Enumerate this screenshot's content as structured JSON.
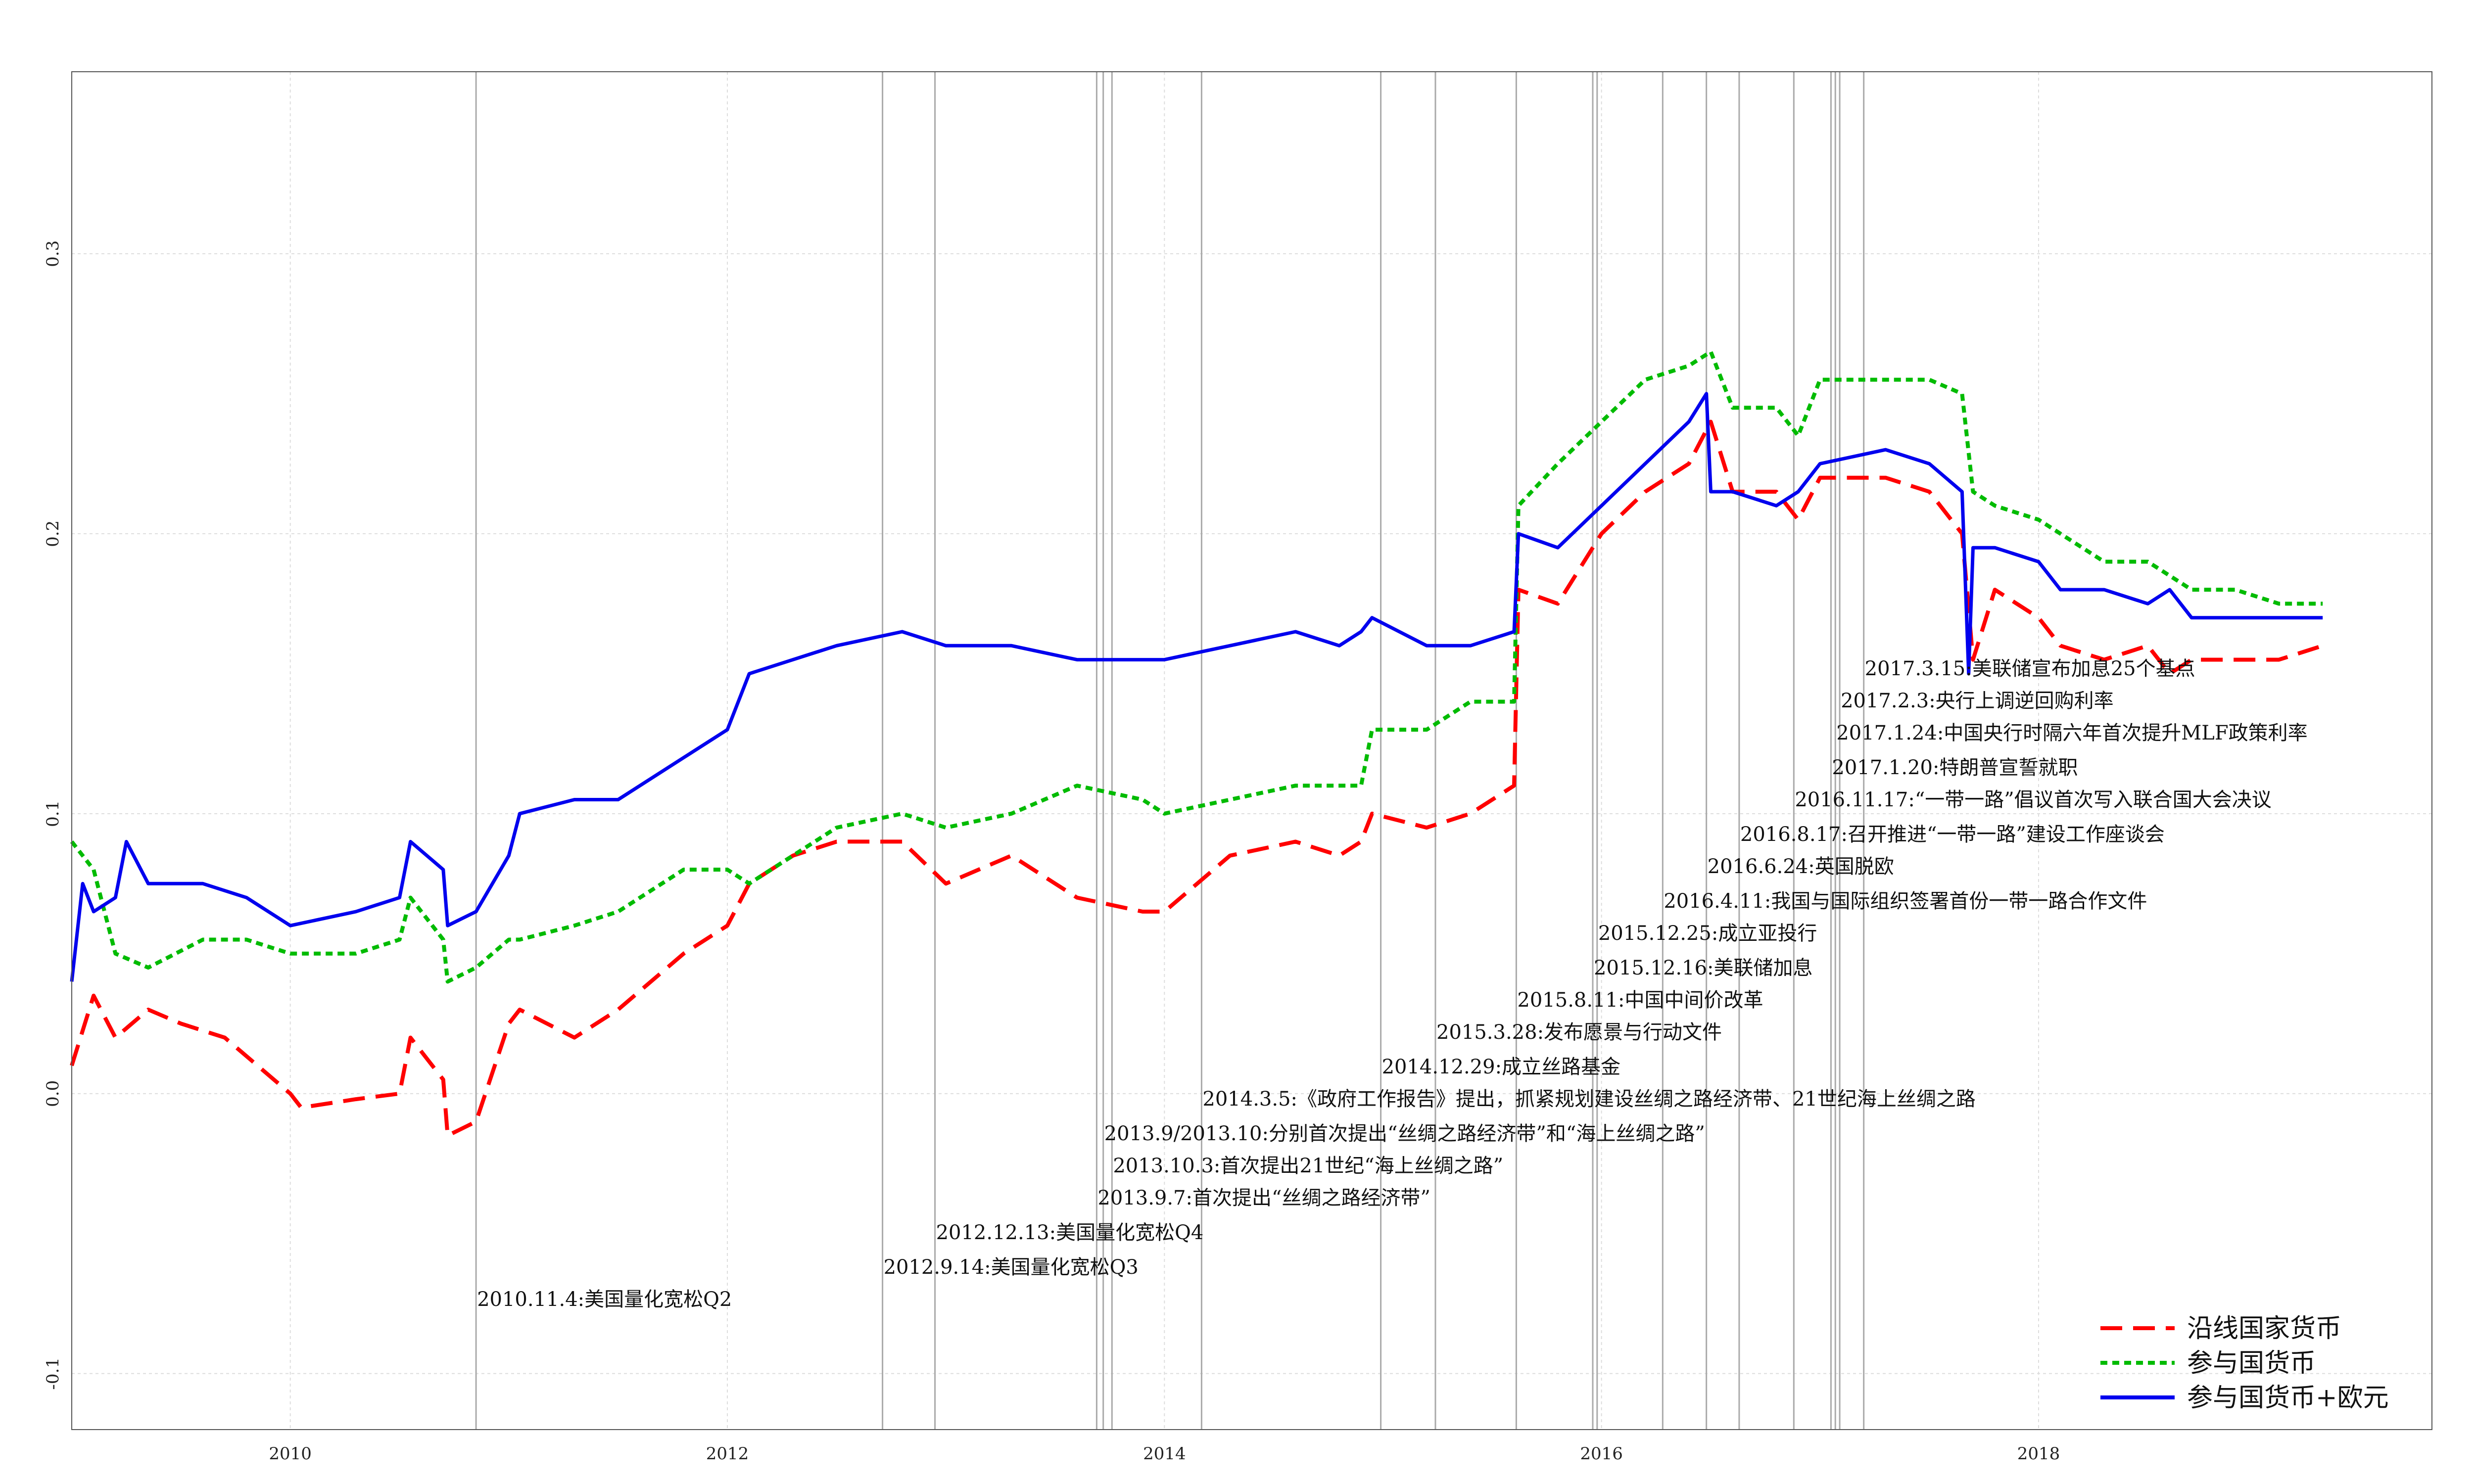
{
  "chart_data": {
    "type": "line",
    "title": "",
    "xlabel": "",
    "ylabel": "",
    "xlim": [
      2009.0,
      2019.8
    ],
    "ylim": [
      -0.12,
      0.365
    ],
    "x_ticks": [
      2010,
      2012,
      2014,
      2016,
      2018
    ],
    "y_ticks": [
      -0.1,
      0.0,
      0.1,
      0.2,
      0.3
    ],
    "y_tick_labels": [
      "-0.1",
      "0.0",
      "0.1",
      "0.2",
      "0.3"
    ],
    "grid": true,
    "legend_position": "bottom-right",
    "series": [
      {
        "name": "沿线国家货币",
        "color": "#ff0000",
        "dash": "long-dash",
        "x": [
          2009.0,
          2009.1,
          2009.2,
          2009.35,
          2009.5,
          2009.7,
          2010.0,
          2010.05,
          2010.3,
          2010.5,
          2010.55,
          2010.7,
          2010.72,
          2010.85,
          2011.0,
          2011.05,
          2011.3,
          2011.5,
          2011.8,
          2012.0,
          2012.1,
          2012.3,
          2012.5,
          2012.8,
          2013.0,
          2013.3,
          2013.6,
          2013.9,
          2014.0,
          2014.3,
          2014.6,
          2014.8,
          2014.9,
          2014.95,
          2015.2,
          2015.4,
          2015.6,
          2015.62,
          2015.8,
          2016.0,
          2016.2,
          2016.4,
          2016.5,
          2016.6,
          2016.8,
          2016.9,
          2017.0,
          2017.3,
          2017.5,
          2017.65,
          2017.7,
          2017.8,
          2018.0,
          2018.1,
          2018.3,
          2018.5,
          2018.6,
          2018.7,
          2018.9,
          2019.1,
          2019.3
        ],
        "y": [
          0.01,
          0.035,
          0.02,
          0.03,
          0.025,
          0.02,
          0.0,
          -0.005,
          -0.002,
          0.0,
          0.02,
          0.005,
          -0.015,
          -0.01,
          0.025,
          0.03,
          0.02,
          0.03,
          0.05,
          0.06,
          0.075,
          0.085,
          0.09,
          0.09,
          0.075,
          0.085,
          0.07,
          0.065,
          0.065,
          0.085,
          0.09,
          0.085,
          0.09,
          0.1,
          0.095,
          0.1,
          0.11,
          0.18,
          0.175,
          0.2,
          0.215,
          0.225,
          0.24,
          0.215,
          0.215,
          0.205,
          0.22,
          0.22,
          0.215,
          0.2,
          0.155,
          0.18,
          0.17,
          0.16,
          0.155,
          0.16,
          0.15,
          0.155,
          0.155,
          0.155,
          0.16
        ]
      },
      {
        "name": "参与国货币",
        "color": "#00bb00",
        "dash": "short-dash",
        "x": [
          2009.0,
          2009.1,
          2009.2,
          2009.35,
          2009.6,
          2009.8,
          2010.0,
          2010.3,
          2010.5,
          2010.55,
          2010.7,
          2010.72,
          2010.85,
          2011.0,
          2011.05,
          2011.3,
          2011.5,
          2011.8,
          2012.0,
          2012.1,
          2012.3,
          2012.5,
          2012.8,
          2013.0,
          2013.3,
          2013.6,
          2013.9,
          2014.0,
          2014.3,
          2014.6,
          2014.8,
          2014.9,
          2014.95,
          2015.2,
          2015.4,
          2015.6,
          2015.62,
          2015.8,
          2016.0,
          2016.2,
          2016.4,
          2016.5,
          2016.6,
          2016.8,
          2016.9,
          2017.0,
          2017.3,
          2017.5,
          2017.65,
          2017.7,
          2017.8,
          2018.0,
          2018.1,
          2018.3,
          2018.5,
          2018.6,
          2018.7,
          2018.9,
          2019.1,
          2019.3
        ],
        "y": [
          0.09,
          0.08,
          0.05,
          0.045,
          0.055,
          0.055,
          0.05,
          0.05,
          0.055,
          0.07,
          0.055,
          0.04,
          0.045,
          0.055,
          0.055,
          0.06,
          0.065,
          0.08,
          0.08,
          0.075,
          0.085,
          0.095,
          0.1,
          0.095,
          0.1,
          0.11,
          0.105,
          0.1,
          0.105,
          0.11,
          0.11,
          0.11,
          0.13,
          0.13,
          0.14,
          0.14,
          0.21,
          0.225,
          0.24,
          0.255,
          0.26,
          0.265,
          0.245,
          0.245,
          0.235,
          0.255,
          0.255,
          0.255,
          0.25,
          0.215,
          0.21,
          0.205,
          0.2,
          0.19,
          0.19,
          0.185,
          0.18,
          0.18,
          0.175,
          0.175
        ]
      },
      {
        "name": "参与国货币+欧元",
        "color": "#0000ee",
        "dash": "solid",
        "x": [
          2009.0,
          2009.05,
          2009.1,
          2009.2,
          2009.25,
          2009.35,
          2009.4,
          2009.6,
          2009.8,
          2010.0,
          2010.3,
          2010.5,
          2010.55,
          2010.7,
          2010.72,
          2010.85,
          2011.0,
          2011.05,
          2011.3,
          2011.5,
          2011.8,
          2012.0,
          2012.1,
          2012.3,
          2012.5,
          2012.8,
          2013.0,
          2013.3,
          2013.6,
          2013.9,
          2014.0,
          2014.3,
          2014.6,
          2014.8,
          2014.9,
          2014.95,
          2015.2,
          2015.4,
          2015.6,
          2015.62,
          2015.8,
          2016.0,
          2016.2,
          2016.4,
          2016.48,
          2016.5,
          2016.6,
          2016.8,
          2016.9,
          2017.0,
          2017.3,
          2017.5,
          2017.65,
          2017.68,
          2017.7,
          2017.8,
          2018.0,
          2018.1,
          2018.3,
          2018.5,
          2018.6,
          2018.7,
          2018.9,
          2019.1,
          2019.3
        ],
        "y": [
          0.04,
          0.075,
          0.065,
          0.07,
          0.09,
          0.075,
          0.075,
          0.075,
          0.07,
          0.06,
          0.065,
          0.07,
          0.09,
          0.08,
          0.06,
          0.065,
          0.085,
          0.1,
          0.105,
          0.105,
          0.12,
          0.13,
          0.15,
          0.155,
          0.16,
          0.165,
          0.16,
          0.16,
          0.155,
          0.155,
          0.155,
          0.16,
          0.165,
          0.16,
          0.165,
          0.17,
          0.16,
          0.16,
          0.165,
          0.2,
          0.195,
          0.21,
          0.225,
          0.24,
          0.25,
          0.215,
          0.215,
          0.21,
          0.215,
          0.225,
          0.23,
          0.225,
          0.215,
          0.15,
          0.195,
          0.195,
          0.19,
          0.18,
          0.18,
          0.175,
          0.18,
          0.17,
          0.17,
          0.17,
          0.17
        ]
      }
    ],
    "events": [
      {
        "x": 2010.85,
        "label": "2010.11.4:美国量化宽松Q2"
      },
      {
        "x": 2012.71,
        "label": "2012.9.14:美国量化宽松Q3"
      },
      {
        "x": 2012.95,
        "label": "2012.12.13:美国量化宽松Q4"
      },
      {
        "x": 2013.69,
        "label": "2013.9.7:首次提出“丝绸之路经济带”"
      },
      {
        "x": 2013.76,
        "label": "2013.10.3:首次提出21世纪“海上丝绸之路”"
      },
      {
        "x": 2013.72,
        "label": "2013.9/2013.10:分别首次提出“丝绸之路经济带”和“海上丝绸之路”"
      },
      {
        "x": 2014.17,
        "label": "2014.3.5:《政府工作报告》提出，抓紧规划建设丝绸之路经济带、21世纪海上丝绸之路"
      },
      {
        "x": 2014.99,
        "label": "2014.12.29:成立丝路基金"
      },
      {
        "x": 2015.24,
        "label": "2015.3.28:发布愿景与行动文件"
      },
      {
        "x": 2015.61,
        "label": "2015.8.11:中国中间价改革"
      },
      {
        "x": 2015.96,
        "label": "2015.12.16:美联储加息"
      },
      {
        "x": 2015.98,
        "label": "2015.12.25:成立亚投行"
      },
      {
        "x": 2016.28,
        "label": "2016.4.11:我国与国际组织签署首份一带一路合作文件"
      },
      {
        "x": 2016.48,
        "label": "2016.6.24:英国脱欧"
      },
      {
        "x": 2016.63,
        "label": "2016.8.17:召开推进“一带一路”建设工作座谈会"
      },
      {
        "x": 2016.88,
        "label": "2016.11.17:“一带一路”倡议首次写入联合国大会决议"
      },
      {
        "x": 2017.05,
        "label": "2017.1.20:特朗普宣誓就职"
      },
      {
        "x": 2017.07,
        "label": "2017.1.24:中国央行时隔六年首次提升MLF政策利率"
      },
      {
        "x": 2017.09,
        "label": "2017.2.3:央行上调逆回购利率"
      },
      {
        "x": 2017.2,
        "label": "2017.3.15:美联储宣布加息25个基点"
      }
    ]
  }
}
